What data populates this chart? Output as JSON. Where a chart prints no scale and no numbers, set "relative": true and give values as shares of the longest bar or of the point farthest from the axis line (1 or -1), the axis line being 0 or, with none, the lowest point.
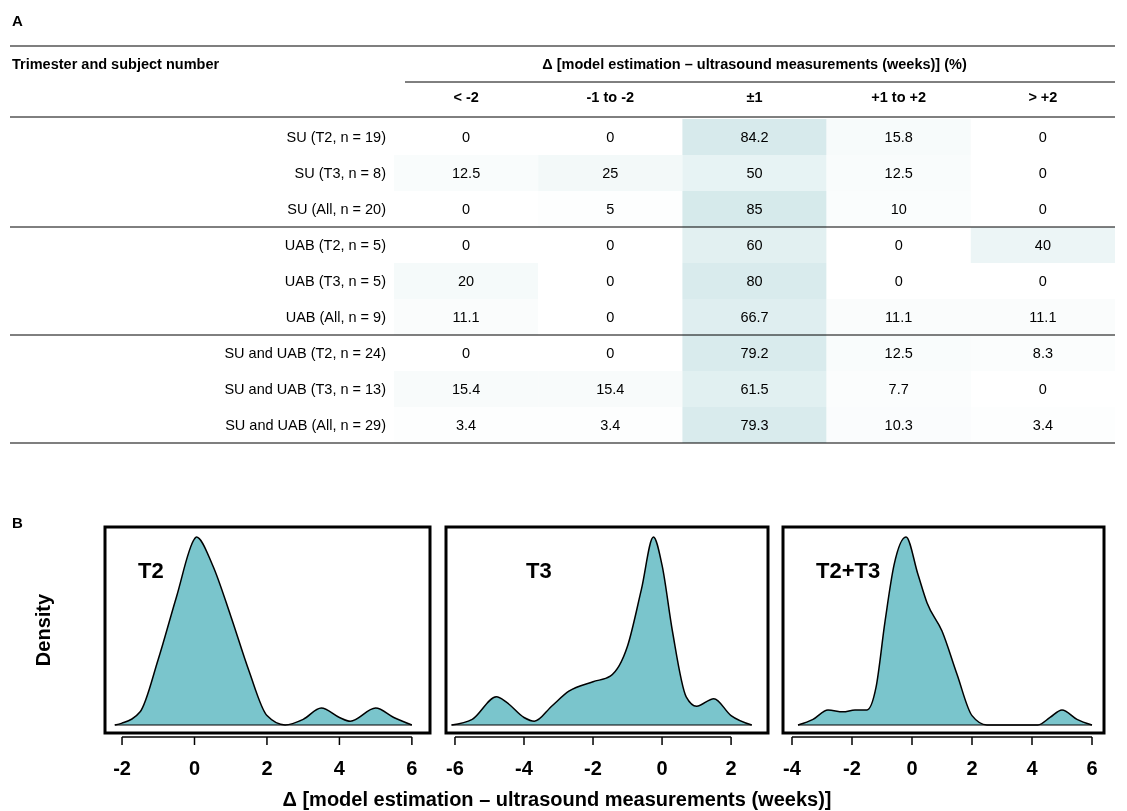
{
  "chart_data": [
    {
      "type": "heatmap",
      "annotations": [
        "A"
      ],
      "xlabel": "Δ [model estimation – ultrasound measurements (weeks)] (%)",
      "ylabel": "Trimester and subject number",
      "categories": [
        "< -2",
        "-1 to -2",
        "±1",
        "+1 to +2",
        "> +2"
      ],
      "y_categories": [
        "SU (T2, n = 19)",
        "SU (T3, n = 8)",
        "SU (All, n = 20)",
        "UAB (T2, n = 5)",
        "UAB (T3, n = 5)",
        "UAB (All, n = 9)",
        "SU and UAB (T2, n = 24)",
        "SU and UAB (T3, n = 13)",
        "SU and UAB (All, n = 29)"
      ],
      "cells": [
        [
          0,
          0,
          84.2,
          15.8,
          0
        ],
        [
          12.5,
          25,
          50,
          12.5,
          0
        ],
        [
          0,
          5,
          85,
          10,
          0
        ],
        [
          0,
          0,
          60,
          0,
          40
        ],
        [
          20,
          0,
          80,
          0,
          0
        ],
        [
          11.1,
          0,
          66.7,
          11.1,
          11.1
        ],
        [
          0,
          0,
          79.2,
          12.5,
          8.3
        ],
        [
          15.4,
          15.4,
          61.5,
          7.7,
          0
        ],
        [
          3.4,
          3.4,
          79.3,
          10.3,
          3.4
        ]
      ],
      "cell_labels": [
        [
          "0",
          "0",
          "84.2",
          "15.8",
          "0"
        ],
        [
          "12.5",
          "25",
          "50",
          "12.5",
          "0"
        ],
        [
          "0",
          "5",
          "85",
          "10",
          "0"
        ],
        [
          "0",
          "0",
          "60",
          "0",
          "40"
        ],
        [
          "20",
          "0",
          "80",
          "0",
          "0"
        ],
        [
          "11.1",
          "0",
          "66.7",
          "11.1",
          "11.1"
        ],
        [
          "0",
          "0",
          "79.2",
          "12.5",
          "8.3"
        ],
        [
          "15.4",
          "15.4",
          "61.5",
          "7.7",
          "0"
        ],
        [
          "3.4",
          "3.4",
          "79.3",
          "10.3",
          "3.4"
        ]
      ],
      "data_labels": true
    },
    {
      "type": "area",
      "title": "T2",
      "ylabel": "Density",
      "annotations": [
        "B"
      ],
      "relative": true,
      "xlim": [
        -2.47,
        6.5
      ],
      "xticks": [
        -2,
        0,
        2,
        4,
        6
      ],
      "x": [
        -2.2,
        -2,
        -1.5,
        -1,
        -0.5,
        0,
        0.05,
        0.5,
        1,
        1.5,
        2,
        2.5,
        3,
        3.5,
        4,
        4.3,
        5,
        5.5,
        6
      ],
      "series": [
        {
          "color": "#7ac5cc",
          "values": [
            0,
            0.01,
            0.07,
            0.35,
            0.68,
            0.99,
            1,
            0.85,
            0.58,
            0.29,
            0.05,
            0,
            0.03,
            0.09,
            0.04,
            0.02,
            0.09,
            0.04,
            0
          ]
        }
      ]
    },
    {
      "type": "area",
      "title": "T3",
      "xlabel": "Δ [model estimation – ultrasound measurements (weeks)]",
      "relative": true,
      "xlim": [
        -6.26,
        3.07
      ],
      "xticks": [
        -6,
        -4,
        -2,
        0,
        2
      ],
      "x": [
        -6.1,
        -5.5,
        -4.8,
        -4.5,
        -4,
        -3.7,
        -3.2,
        -2.7,
        -2,
        -1.5,
        -1,
        -0.6,
        -0.25,
        0,
        0.3,
        0.7,
        1,
        1.5,
        2,
        2.6
      ],
      "series": [
        {
          "color": "#7ac5cc",
          "values": [
            0,
            0.03,
            0.15,
            0.12,
            0.04,
            0.02,
            0.1,
            0.18,
            0.23,
            0.26,
            0.42,
            0.72,
            1,
            0.85,
            0.5,
            0.15,
            0.1,
            0.14,
            0.05,
            0
          ]
        }
      ]
    },
    {
      "type": "area",
      "title": "T2+T3",
      "relative": true,
      "xlim": [
        -4.3,
        6.4
      ],
      "xticks": [
        -4,
        -2,
        0,
        2,
        4,
        6
      ],
      "x": [
        -3.8,
        -3.3,
        -2.8,
        -2.3,
        -1.9,
        -1.5,
        -1.2,
        -0.9,
        -0.6,
        -0.2,
        0.2,
        0.5,
        1,
        1.5,
        2,
        2.5,
        4.2,
        4.6,
        5,
        5.5,
        6
      ],
      "series": [
        {
          "color": "#7ac5cc",
          "values": [
            0,
            0.03,
            0.08,
            0.07,
            0.08,
            0.08,
            0.2,
            0.55,
            0.85,
            1,
            0.8,
            0.65,
            0.5,
            0.27,
            0.05,
            0,
            0,
            0.04,
            0.08,
            0.03,
            0
          ]
        }
      ]
    }
  ]
}
